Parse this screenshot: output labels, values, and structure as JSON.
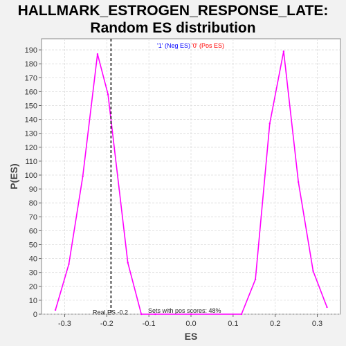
{
  "chart_data": {
    "type": "line",
    "title_line1": "HALLMARK_ESTROGEN_RESPONSE_LATE:",
    "title_line2": "Random ES distribution",
    "xlabel": "ES",
    "ylabel": "P(ES)",
    "xlim": [
      -0.355,
      0.355
    ],
    "ylim": [
      0,
      198
    ],
    "x_ticks": [
      -0.3,
      -0.2,
      -0.1,
      0.0,
      0.1,
      0.2,
      0.3
    ],
    "x_tick_labels": [
      "-0.3",
      "-0.2",
      "-0.1",
      "0.0",
      "0.1",
      "0.2",
      "0.3"
    ],
    "y_ticks": [
      0,
      10,
      20,
      30,
      40,
      50,
      60,
      70,
      80,
      90,
      100,
      110,
      120,
      130,
      140,
      150,
      160,
      170,
      180,
      190
    ],
    "grid": true,
    "legend": {
      "placement": "top-center",
      "entries": [
        {
          "label": "'1' (Neg ES)",
          "color": "#0000ff"
        },
        {
          "label": "'0' (Pos ES)",
          "color": "#ff0000"
        }
      ]
    },
    "series": [
      {
        "color": "#ff00ff",
        "x": [
          -0.322,
          -0.29,
          -0.257,
          -0.222,
          -0.197,
          -0.15,
          -0.118,
          -0.085,
          0.0,
          0.12,
          0.153,
          0.187,
          0.22,
          0.255,
          0.29,
          0.323
        ],
        "y": [
          3,
          36,
          99,
          187,
          158,
          37,
          0,
          0,
          0,
          0,
          25,
          137,
          189,
          95,
          31,
          5
        ]
      }
    ],
    "real_es": -0.19,
    "annotations": {
      "real_es_label": "Real ES -0.2",
      "pos_scores_label": "Sets with pos scores: 48%"
    }
  },
  "colors": {
    "background": "#f2f2f2",
    "plot_background": "#ffffff",
    "grid": "#dcdcdc",
    "line": "#ff00ff"
  }
}
